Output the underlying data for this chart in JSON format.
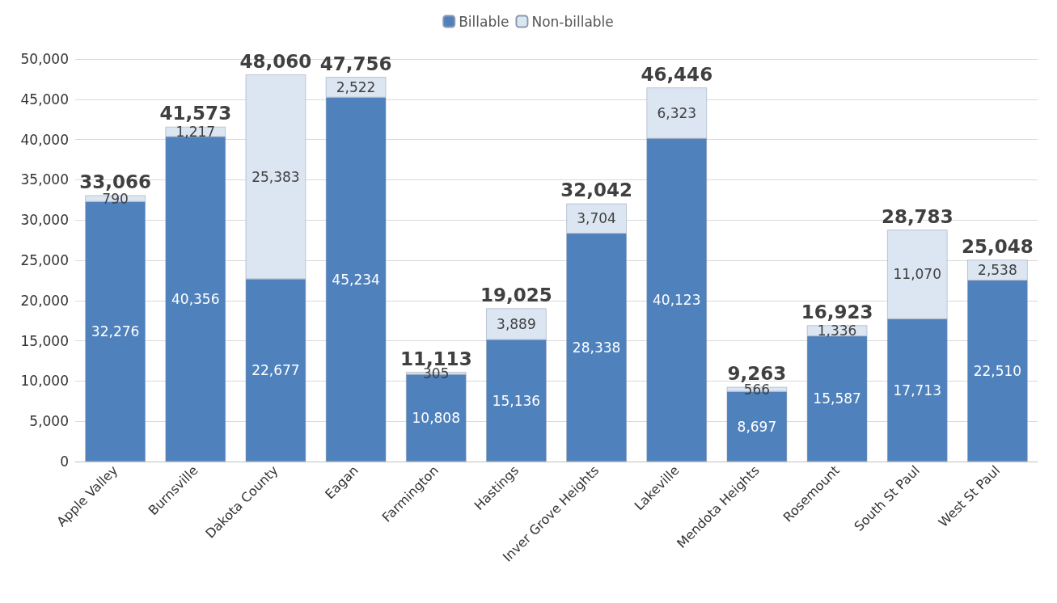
{
  "chart_data": {
    "type": "bar",
    "stacked": true,
    "categories": [
      "Apple Valley",
      "Burnsville",
      "Dakota County",
      "Eagan",
      "Farmington",
      "Hastings",
      "Inver Grove Heights",
      "Lakeville",
      "Mendota Heights",
      "Rosemount",
      "South St Paul",
      "West St Paul"
    ],
    "series": [
      {
        "name": "Billable",
        "color": "#4f81bd",
        "values": [
          32276,
          40356,
          22677,
          45234,
          10808,
          15136,
          28338,
          40123,
          8697,
          15587,
          17713,
          22510
        ],
        "value_labels": [
          "32,276",
          "40,356",
          "22,677",
          "45,234",
          "10,808",
          "15,136",
          "28,338",
          "40,123",
          "8,697",
          "15,587",
          "17,713",
          "22,510"
        ]
      },
      {
        "name": "Non-billable",
        "color": "#dce6f2",
        "values": [
          790,
          1217,
          25383,
          2522,
          305,
          3889,
          3704,
          6323,
          566,
          1336,
          11070,
          2538
        ],
        "value_labels": [
          "790",
          "1,217",
          "25,383",
          "2,522",
          "305",
          "3,889",
          "3,704",
          "6,323",
          "566",
          "1,336",
          "11,070",
          "2,538"
        ]
      }
    ],
    "totals": [
      "33,066",
      "41,573",
      "48,060",
      "47,756",
      "11,113",
      "19,025",
      "32,042",
      "46,446",
      "9,263",
      "16,923",
      "28,783",
      "25,048"
    ],
    "ylim": [
      0,
      50000
    ],
    "yticks": [
      0,
      {
        "value": 5000,
        "label": "5,000"
      },
      {
        "value": 10000,
        "label": "10,000"
      },
      {
        "value": 15000,
        "label": "15,000"
      },
      {
        "value": 20000,
        "label": "20,000"
      },
      {
        "value": 25000,
        "label": "25,000"
      },
      {
        "value": 30000,
        "label": "30,000"
      },
      {
        "value": 35000,
        "label": "35,000"
      },
      {
        "value": 40000,
        "label": "40,000"
      },
      {
        "value": 45000,
        "label": "45,000"
      },
      {
        "value": 50000,
        "label": "50,000"
      }
    ],
    "grid": "y",
    "legend": "top"
  }
}
